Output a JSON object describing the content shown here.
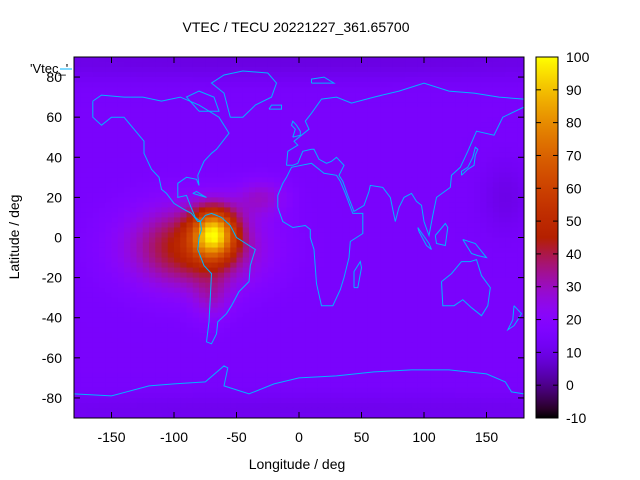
{
  "chart_data": {
    "type": "heatmap",
    "title": "VTEC / TECU 20221227_361.65700",
    "xlabel": "Longitude / deg",
    "ylabel": "Latitude / deg",
    "key_label": "'Vtec_'",
    "xlim": [
      -180,
      180
    ],
    "ylim": [
      -90,
      90
    ],
    "xticks": [
      -150,
      -100,
      -50,
      0,
      50,
      100,
      150
    ],
    "yticks": [
      80,
      60,
      40,
      20,
      0,
      -20,
      -40,
      -60,
      -80
    ],
    "colorbar": {
      "range": [
        -10,
        100
      ],
      "ticks": [
        100,
        90,
        80,
        70,
        60,
        50,
        40,
        30,
        20,
        10,
        0,
        -10
      ],
      "palette": "gnuplot pm3d (black-purple-red-orange-yellow)"
    },
    "grid_step_lon": 5,
    "grid_step_lat": 2.5,
    "background_level": 15,
    "anomalies": [
      {
        "name": "south-america-core",
        "lon": -68,
        "lat": 2,
        "peak": 60,
        "sig_lon": 17,
        "sig_lat": 12
      },
      {
        "name": "tropical-band",
        "lon": -85,
        "lat": -5,
        "peak": 33,
        "sig_lon": 50,
        "sig_lat": 20
      },
      {
        "name": "atlantic-north",
        "lon": -30,
        "lat": 20,
        "peak": 12,
        "sig_lon": 20,
        "sig_lat": 9
      },
      {
        "name": "southern-cone",
        "lon": -70,
        "lat": -30,
        "peak": 10,
        "sig_lon": 15,
        "sig_lat": 12
      },
      {
        "name": "north-polar-dark",
        "lon": 0,
        "lat": 88,
        "peak": -6,
        "sig_lon": 400,
        "sig_lat": 10
      },
      {
        "name": "south-polar-dark",
        "lon": 20,
        "lat": -86,
        "peak": -4,
        "sig_lon": 400,
        "sig_lat": 8
      },
      {
        "name": "east-asia-dark",
        "lon": 165,
        "lat": 20,
        "peak": -5,
        "sig_lon": 20,
        "sig_lat": 18
      }
    ],
    "coastline_color": "#00b4ff",
    "coastlines": [
      {
        "name": "north-america",
        "points": [
          [
            -165,
            68
          ],
          [
            -158,
            71
          ],
          [
            -140,
            70
          ],
          [
            -125,
            70
          ],
          [
            -110,
            68
          ],
          [
            -95,
            70
          ],
          [
            -80,
            66
          ],
          [
            -64,
            60
          ],
          [
            -56,
            52
          ],
          [
            -66,
            44
          ],
          [
            -70,
            42
          ],
          [
            -76,
            38
          ],
          [
            -81,
            31
          ],
          [
            -80,
            26
          ],
          [
            -82,
            29
          ],
          [
            -90,
            30
          ],
          [
            -97,
            27
          ],
          [
            -97,
            20
          ],
          [
            -90,
            21
          ],
          [
            -87,
            16
          ],
          [
            -83,
            10
          ],
          [
            -79,
            8
          ],
          [
            -81,
            8
          ],
          [
            -86,
            12
          ],
          [
            -92,
            14
          ],
          [
            -100,
            17
          ],
          [
            -106,
            22
          ],
          [
            -110,
            24
          ],
          [
            -112,
            30
          ],
          [
            -118,
            34
          ],
          [
            -124,
            42
          ],
          [
            -124,
            48
          ],
          [
            -132,
            54
          ],
          [
            -140,
            60
          ],
          [
            -150,
            60
          ],
          [
            -158,
            56
          ],
          [
            -165,
            60
          ],
          [
            -165,
            68
          ]
        ]
      },
      {
        "name": "greenland",
        "points": [
          [
            -55,
            60
          ],
          [
            -45,
            60
          ],
          [
            -35,
            66
          ],
          [
            -22,
            70
          ],
          [
            -18,
            77
          ],
          [
            -25,
            82
          ],
          [
            -45,
            83
          ],
          [
            -60,
            81
          ],
          [
            -70,
            77
          ],
          [
            -60,
            72
          ],
          [
            -55,
            60
          ]
        ]
      },
      {
        "name": "south-america",
        "points": [
          [
            -79,
            8
          ],
          [
            -75,
            11
          ],
          [
            -70,
            12
          ],
          [
            -62,
            10
          ],
          [
            -55,
            6
          ],
          [
            -50,
            0
          ],
          [
            -45,
            -2
          ],
          [
            -35,
            -6
          ],
          [
            -39,
            -14
          ],
          [
            -40,
            -22
          ],
          [
            -48,
            -27
          ],
          [
            -54,
            -34
          ],
          [
            -58,
            -38
          ],
          [
            -65,
            -42
          ],
          [
            -66,
            -48
          ],
          [
            -70,
            -53
          ],
          [
            -74,
            -52
          ],
          [
            -72,
            -42
          ],
          [
            -71,
            -30
          ],
          [
            -70,
            -18
          ],
          [
            -76,
            -14
          ],
          [
            -81,
            -6
          ],
          [
            -80,
            0
          ],
          [
            -78,
            4
          ],
          [
            -79,
            8
          ]
        ]
      },
      {
        "name": "eurasia",
        "points": [
          [
            -10,
            36
          ],
          [
            -9,
            43
          ],
          [
            -1,
            46
          ],
          [
            -4,
            48
          ],
          [
            2,
            51
          ],
          [
            8,
            54
          ],
          [
            5,
            58
          ],
          [
            10,
            62
          ],
          [
            18,
            69
          ],
          [
            30,
            70
          ],
          [
            42,
            67
          ],
          [
            60,
            70
          ],
          [
            80,
            73
          ],
          [
            100,
            77
          ],
          [
            120,
            73
          ],
          [
            140,
            72
          ],
          [
            160,
            70
          ],
          [
            180,
            69
          ],
          [
            180,
            65
          ],
          [
            163,
            60
          ],
          [
            156,
            51
          ],
          [
            142,
            53
          ],
          [
            135,
            43
          ],
          [
            129,
            35
          ],
          [
            122,
            31
          ],
          [
            121,
            25
          ],
          [
            110,
            20
          ],
          [
            107,
            11
          ],
          [
            104,
            1
          ],
          [
            100,
            8
          ],
          [
            98,
            16
          ],
          [
            94,
            18
          ],
          [
            90,
            22
          ],
          [
            84,
            20
          ],
          [
            80,
            15
          ],
          [
            77,
            8
          ],
          [
            73,
            20
          ],
          [
            67,
            25
          ],
          [
            57,
            26
          ],
          [
            56,
            23
          ],
          [
            52,
            16
          ],
          [
            44,
            13
          ],
          [
            39,
            21
          ],
          [
            35,
            28
          ],
          [
            32,
            31
          ],
          [
            36,
            36
          ],
          [
            30,
            40
          ],
          [
            26,
            38
          ],
          [
            22,
            37
          ],
          [
            16,
            39
          ],
          [
            12,
            44
          ],
          [
            10,
            44
          ],
          [
            3,
            43
          ],
          [
            -1,
            37
          ],
          [
            -5,
            36
          ],
          [
            -10,
            36
          ]
        ]
      },
      {
        "name": "africa",
        "points": [
          [
            -17,
            15
          ],
          [
            -17,
            21
          ],
          [
            -13,
            27
          ],
          [
            -10,
            30
          ],
          [
            -6,
            35
          ],
          [
            10,
            37
          ],
          [
            20,
            32
          ],
          [
            30,
            31
          ],
          [
            33,
            28
          ],
          [
            37,
            22
          ],
          [
            43,
            12
          ],
          [
            51,
            12
          ],
          [
            51,
            2
          ],
          [
            41,
            -2
          ],
          [
            40,
            -10
          ],
          [
            36,
            -20
          ],
          [
            33,
            -26
          ],
          [
            27,
            -34
          ],
          [
            18,
            -34
          ],
          [
            14,
            -23
          ],
          [
            12,
            -6
          ],
          [
            9,
            0
          ],
          [
            9,
            4
          ],
          [
            5,
            6
          ],
          [
            -5,
            5
          ],
          [
            -13,
            8
          ],
          [
            -17,
            15
          ]
        ]
      },
      {
        "name": "australia",
        "points": [
          [
            114,
            -22
          ],
          [
            122,
            -18
          ],
          [
            130,
            -12
          ],
          [
            137,
            -12
          ],
          [
            142,
            -11
          ],
          [
            146,
            -19
          ],
          [
            153,
            -25
          ],
          [
            151,
            -34
          ],
          [
            146,
            -39
          ],
          [
            138,
            -35
          ],
          [
            131,
            -31
          ],
          [
            124,
            -34
          ],
          [
            115,
            -34
          ],
          [
            114,
            -22
          ]
        ]
      },
      {
        "name": "antarctica",
        "points": [
          [
            -180,
            -78
          ],
          [
            -150,
            -79
          ],
          [
            -120,
            -74
          ],
          [
            -100,
            -73
          ],
          [
            -75,
            -72
          ],
          [
            -60,
            -64
          ],
          [
            -57,
            -65
          ],
          [
            -60,
            -74
          ],
          [
            -40,
            -78
          ],
          [
            -20,
            -73
          ],
          [
            0,
            -70
          ],
          [
            30,
            -69
          ],
          [
            60,
            -67
          ],
          [
            90,
            -66
          ],
          [
            120,
            -66
          ],
          [
            150,
            -68
          ],
          [
            165,
            -72
          ],
          [
            170,
            -77
          ],
          [
            180,
            -78
          ]
        ]
      },
      {
        "name": "great-britain",
        "points": [
          [
            -5,
            50
          ],
          [
            1,
            51
          ],
          [
            1,
            53
          ],
          [
            -2,
            56
          ],
          [
            -5,
            58
          ],
          [
            -6,
            56
          ],
          [
            -3,
            54
          ],
          [
            -5,
            50
          ]
        ]
      },
      {
        "name": "madagascar",
        "points": [
          [
            44,
            -25
          ],
          [
            47,
            -25
          ],
          [
            50,
            -15
          ],
          [
            49,
            -12
          ],
          [
            44,
            -17
          ],
          [
            44,
            -25
          ]
        ]
      },
      {
        "name": "japan",
        "points": [
          [
            130,
            31
          ],
          [
            135,
            34
          ],
          [
            140,
            36
          ],
          [
            141,
            41
          ],
          [
            143,
            44
          ],
          [
            141,
            45
          ],
          [
            139,
            40
          ],
          [
            135,
            35
          ],
          [
            130,
            33
          ],
          [
            130,
            31
          ]
        ]
      },
      {
        "name": "borneo",
        "points": [
          [
            109,
            1
          ],
          [
            117,
            7
          ],
          [
            119,
            5
          ],
          [
            117,
            -4
          ],
          [
            110,
            -3
          ],
          [
            109,
            1
          ]
        ]
      },
      {
        "name": "sumatra",
        "points": [
          [
            95,
            5
          ],
          [
            104,
            -3
          ],
          [
            106,
            -6
          ],
          [
            102,
            -4
          ],
          [
            96,
            3
          ],
          [
            95,
            5
          ]
        ]
      },
      {
        "name": "new-guinea",
        "points": [
          [
            131,
            -1
          ],
          [
            141,
            -3
          ],
          [
            150,
            -10
          ],
          [
            143,
            -9
          ],
          [
            138,
            -8
          ],
          [
            131,
            -1
          ]
        ]
      },
      {
        "name": "new-zealand",
        "points": [
          [
            172,
            -34
          ],
          [
            178,
            -38
          ],
          [
            175,
            -41
          ],
          [
            172,
            -44
          ],
          [
            167,
            -46
          ],
          [
            171,
            -41
          ],
          [
            172,
            -34
          ]
        ]
      },
      {
        "name": "iceland",
        "points": [
          [
            -24,
            64
          ],
          [
            -14,
            64
          ],
          [
            -14,
            66
          ],
          [
            -22,
            66
          ],
          [
            -24,
            64
          ]
        ]
      },
      {
        "name": "cuba",
        "points": [
          [
            -85,
            22
          ],
          [
            -74,
            20
          ],
          [
            -77,
            21
          ],
          [
            -82,
            23
          ],
          [
            -85,
            22
          ]
        ]
      },
      {
        "name": "baffin-island",
        "points": [
          [
            -80,
            63
          ],
          [
            -64,
            63
          ],
          [
            -68,
            70
          ],
          [
            -80,
            73
          ],
          [
            -90,
            70
          ],
          [
            -80,
            63
          ]
        ]
      },
      {
        "name": "svalbard",
        "points": [
          [
            10,
            77
          ],
          [
            28,
            77
          ],
          [
            20,
            80
          ],
          [
            10,
            79
          ],
          [
            10,
            77
          ]
        ]
      }
    ]
  }
}
